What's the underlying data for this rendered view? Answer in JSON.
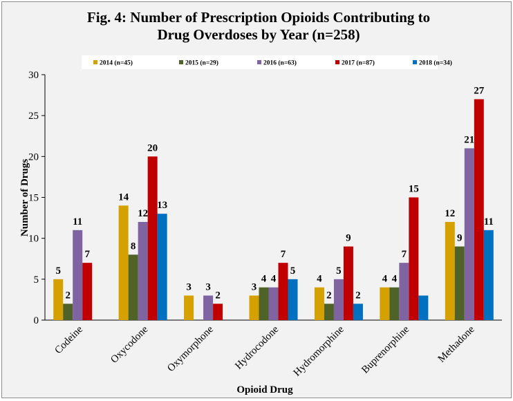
{
  "chart_data": {
    "type": "bar",
    "title_lines": [
      "Fig. 4: Number of Prescription Opioids Contributing to",
      "Drug Overdoses by Year (n=258)"
    ],
    "xlabel": "Opioid Drug",
    "ylabel": "Number of Drugs",
    "ylim": [
      0,
      30
    ],
    "yticks": [
      0,
      5,
      10,
      15,
      20,
      25,
      30
    ],
    "grid": false,
    "legend_position": "top",
    "categories": [
      "Codeine",
      "Oxycodone",
      "Oxymorphone",
      "Hydrocodone",
      "Hydromorphine",
      "Buprenorphine",
      "Methadone"
    ],
    "series": [
      {
        "name": "2014 (n=45)",
        "color": "#d4a100",
        "values": [
          5,
          14,
          3,
          3,
          4,
          4,
          12
        ],
        "labels": [
          "5",
          "14",
          "3",
          "3",
          "4",
          "4",
          "12"
        ]
      },
      {
        "name": "2015 (n=29)",
        "color": "#4f6228",
        "values": [
          2,
          8,
          0,
          4,
          2,
          4,
          9
        ],
        "labels": [
          "2",
          "8",
          "",
          "4",
          "2",
          "4",
          "9"
        ]
      },
      {
        "name": "2016 (n=63)",
        "color": "#8064a2",
        "values": [
          11,
          12,
          3,
          4,
          5,
          7,
          21
        ],
        "labels": [
          "11",
          "12",
          "3",
          "4",
          "5",
          "7",
          "21"
        ]
      },
      {
        "name": "2017 (n=87)",
        "color": "#c00000",
        "values": [
          7,
          20,
          2,
          7,
          9,
          15,
          27
        ],
        "labels": [
          "7",
          "20",
          "2",
          "7",
          "9",
          "15",
          "27"
        ]
      },
      {
        "name": "2018 (n=34)",
        "color": "#0070c0",
        "values": [
          0,
          13,
          0,
          5,
          2,
          3,
          11
        ],
        "labels": [
          "",
          "13",
          "",
          "5",
          "2",
          "",
          "11"
        ]
      }
    ]
  },
  "colors": {
    "background": "#f2f2f2",
    "border": "#8c8c8c",
    "axis": "#000000"
  }
}
